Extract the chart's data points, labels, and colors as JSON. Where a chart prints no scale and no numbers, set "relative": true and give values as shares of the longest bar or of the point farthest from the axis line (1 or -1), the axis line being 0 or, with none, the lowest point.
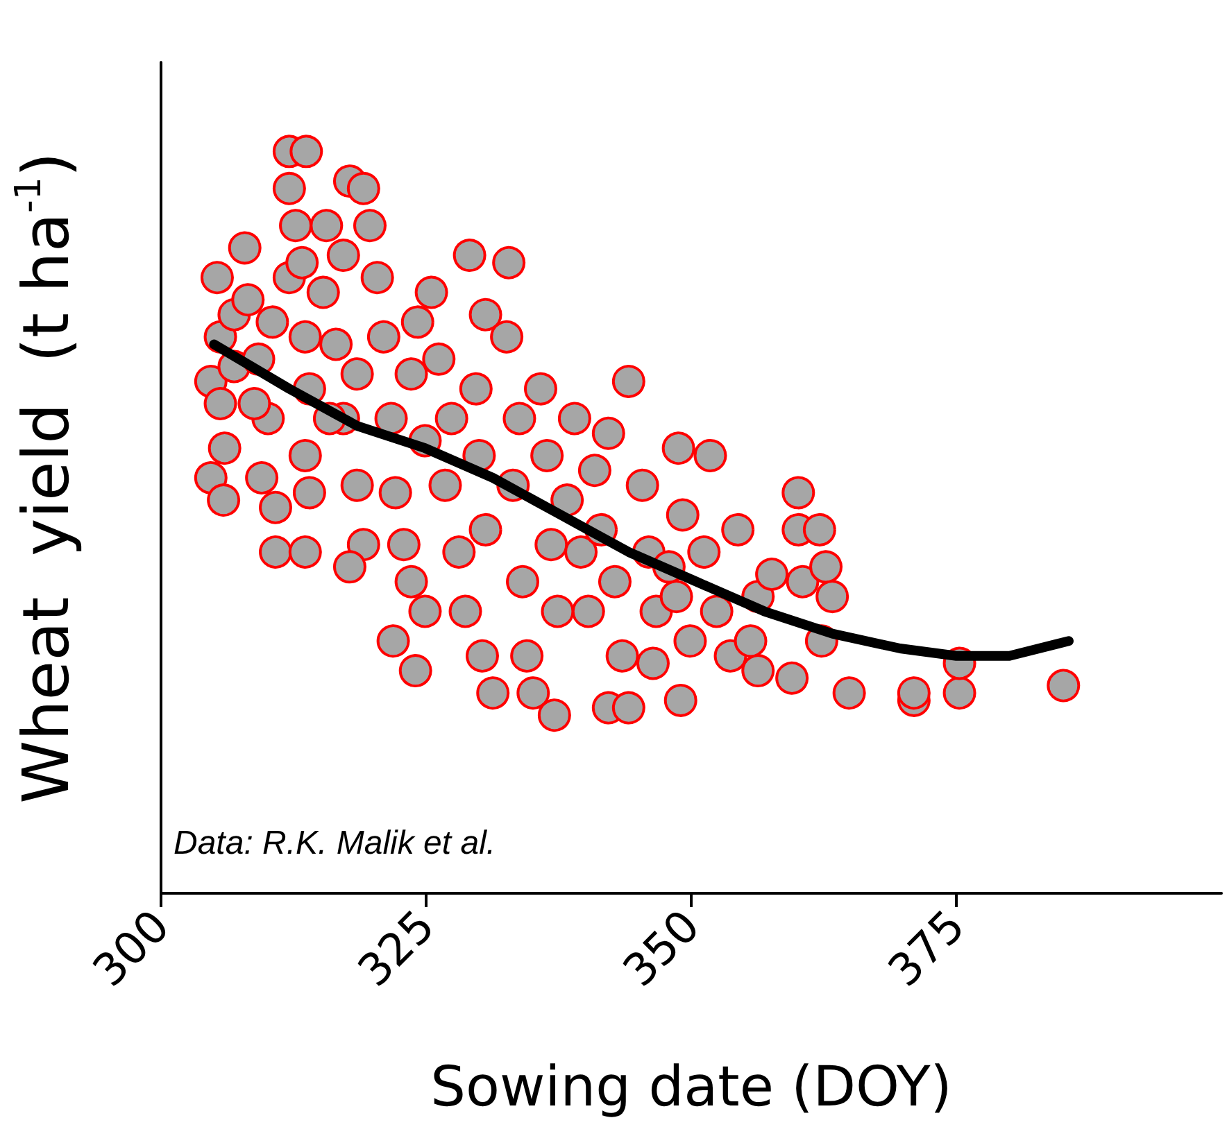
{
  "chart_data": {
    "type": "scatter",
    "xlabel": "Sowing date (DOY)",
    "ylabel": "Wheat  yield  (t ha$^{-1}$)",
    "relative": true,
    "xlim": [
      300,
      400
    ],
    "xticks": [
      300,
      325,
      350,
      375
    ],
    "grid": false,
    "marker": "circle",
    "annotations": [
      "Data: R.K. Malik et al."
    ],
    "series": [
      {
        "color": "#a6a6a6",
        "x": [
          304.7,
          304.7,
          305.9,
          305.3,
          305.6,
          305.6,
          306.0,
          306.9,
          306.9,
          307.9,
          308.2,
          309.2,
          310.1,
          310.8,
          310.8,
          309.5,
          308.8,
          310.5,
          312.1,
          313.7,
          312.1,
          312.7,
          312.1,
          313.3,
          313.6,
          314.0,
          313.6,
          313.6,
          314.0,
          315.6,
          317.2,
          317.8,
          319.1,
          315.3,
          316.5,
          317.2,
          318.5,
          319.1,
          315.9,
          317.8,
          318.5,
          319.7,
          320.4,
          321.0,
          321.7,
          322.1,
          321.9,
          324.0,
          323.6,
          322.9,
          324.2,
          323.6,
          324.9,
          324.9,
          325.5,
          326.2,
          327.4,
          326.8,
          328.1,
          328.7,
          329.1,
          330.6,
          329.7,
          330.0,
          330.3,
          331.3,
          330.6,
          332.8,
          332.6,
          333.8,
          333.2,
          334.1,
          334.5,
          335.1,
          337.1,
          335.8,
          336.8,
          337.4,
          336.4,
          339.0,
          338.3,
          339.6,
          340.3,
          342.2,
          344.1,
          340.9,
          342.8,
          343.5,
          344.1,
          342.2,
          341.5,
          345.4,
          346.0,
          346.7,
          346.4,
          348.8,
          349.2,
          348.6,
          349.0,
          349.9,
          347.9,
          351.8,
          351.2,
          352.4,
          353.7,
          354.4,
          356.3,
          356.3,
          357.6,
          355.6,
          360.1,
          360.1,
          360.5,
          359.5,
          362.1,
          362.7,
          362.3,
          363.3,
          364.9,
          371.0,
          371.0,
          375.3,
          375.3,
          385.1
        ],
        "values": [
          0.69,
          0.56,
          0.53,
          0.83,
          0.75,
          0.66,
          0.6,
          0.78,
          0.71,
          0.87,
          0.8,
          0.72,
          0.64,
          0.46,
          0.52,
          0.56,
          0.66,
          0.77,
          1.0,
          1.0,
          0.95,
          0.9,
          0.83,
          0.85,
          0.75,
          0.68,
          0.59,
          0.46,
          0.54,
          0.9,
          0.86,
          0.96,
          0.95,
          0.81,
          0.74,
          0.64,
          0.55,
          0.47,
          0.64,
          0.44,
          0.7,
          0.9,
          0.83,
          0.75,
          0.64,
          0.54,
          0.34,
          0.3,
          0.42,
          0.47,
          0.77,
          0.7,
          0.61,
          0.38,
          0.81,
          0.72,
          0.64,
          0.55,
          0.46,
          0.38,
          0.86,
          0.78,
          0.68,
          0.59,
          0.32,
          0.27,
          0.49,
          0.85,
          0.75,
          0.64,
          0.55,
          0.42,
          0.32,
          0.27,
          0.24,
          0.68,
          0.47,
          0.38,
          0.59,
          0.64,
          0.53,
          0.46,
          0.38,
          0.25,
          0.25,
          0.57,
          0.42,
          0.32,
          0.69,
          0.62,
          0.49,
          0.55,
          0.46,
          0.38,
          0.31,
          0.6,
          0.51,
          0.4,
          0.26,
          0.34,
          0.44,
          0.59,
          0.46,
          0.38,
          0.32,
          0.49,
          0.4,
          0.3,
          0.43,
          0.34,
          0.54,
          0.49,
          0.42,
          0.29,
          0.49,
          0.44,
          0.34,
          0.4,
          0.27,
          0.26,
          0.27,
          0.27,
          0.31,
          0.28
        ]
      },
      {
        "type": "line",
        "color": "#000000",
        "marker": "none",
        "x": [
          305.0,
          312.1,
          318.5,
          324.9,
          331.3,
          337.7,
          344.1,
          350.5,
          356.9,
          363.3,
          369.7,
          375.0,
          380.0,
          385.6
        ],
        "values": [
          0.74,
          0.68,
          0.63,
          0.6,
          0.56,
          0.51,
          0.46,
          0.42,
          0.38,
          0.35,
          0.33,
          0.32,
          0.32,
          0.34
        ]
      }
    ]
  }
}
